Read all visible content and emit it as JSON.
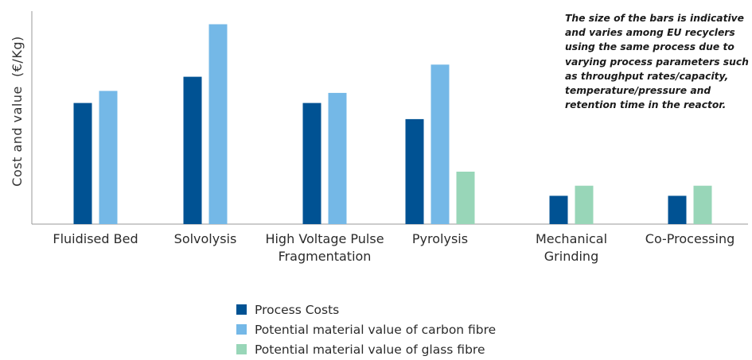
{
  "chart_data": {
    "type": "bar",
    "title": "",
    "xlabel": "",
    "ylabel": "Cost and value  (€/Kg)",
    "ylim": [
      0,
      100
    ],
    "grid": false,
    "legend_position": "bottom",
    "categories": [
      [
        "Fluidised Bed"
      ],
      [
        "Solvolysis"
      ],
      [
        "High Voltage Pulse",
        "Fragmentation"
      ],
      [
        "Pyrolysis"
      ],
      [
        "Mechanical",
        "Grinding"
      ],
      [
        "Co-Processing"
      ]
    ],
    "series": [
      {
        "name": "Process Costs",
        "color": "#005293",
        "values": [
          60,
          73,
          60,
          52,
          14,
          14
        ]
      },
      {
        "name": "Potential material value of carbon fibre",
        "color": "#74b8e7",
        "values": [
          66,
          99,
          65,
          79,
          null,
          null
        ]
      },
      {
        "name": "Potential material value of glass fibre",
        "color": "#98d6b8",
        "values": [
          null,
          null,
          null,
          26,
          19,
          19
        ]
      }
    ],
    "annotation": [
      "The size of the bars is indicative",
      "and varies among EU recyclers",
      "using the same process due to",
      "varying process parameters such",
      "as throughput rates/capacity,",
      "temperature/pressure and",
      "retention time in the reactor."
    ]
  }
}
